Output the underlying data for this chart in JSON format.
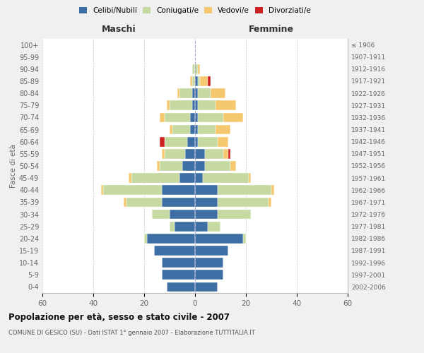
{
  "age_groups": [
    "100+",
    "95-99",
    "90-94",
    "85-89",
    "80-84",
    "75-79",
    "70-74",
    "65-69",
    "60-64",
    "55-59",
    "50-54",
    "45-49",
    "40-44",
    "35-39",
    "30-34",
    "25-29",
    "20-24",
    "15-19",
    "10-14",
    "5-9",
    "0-4"
  ],
  "birth_years": [
    "≤ 1906",
    "1907-1911",
    "1912-1916",
    "1917-1921",
    "1922-1926",
    "1927-1931",
    "1932-1936",
    "1937-1941",
    "1942-1946",
    "1947-1951",
    "1952-1956",
    "1957-1961",
    "1962-1966",
    "1967-1971",
    "1972-1976",
    "1977-1981",
    "1982-1986",
    "1987-1991",
    "1992-1996",
    "1997-2001",
    "2002-2006"
  ],
  "maschi": {
    "celibi": [
      0,
      0,
      0,
      0,
      1,
      1,
      2,
      2,
      3,
      4,
      5,
      6,
      13,
      13,
      10,
      8,
      19,
      16,
      13,
      13,
      11
    ],
    "coniugati": [
      0,
      0,
      1,
      1,
      5,
      9,
      10,
      7,
      9,
      8,
      9,
      19,
      23,
      14,
      7,
      2,
      1,
      0,
      0,
      0,
      0
    ],
    "vedovi": [
      0,
      0,
      0,
      1,
      1,
      1,
      2,
      1,
      0,
      1,
      1,
      1,
      1,
      1,
      0,
      0,
      0,
      0,
      0,
      0,
      0
    ],
    "divorziati": [
      0,
      0,
      0,
      0,
      0,
      0,
      0,
      0,
      2,
      0,
      0,
      0,
      0,
      0,
      0,
      0,
      0,
      0,
      0,
      0,
      0
    ]
  },
  "femmine": {
    "nubili": [
      0,
      0,
      0,
      1,
      1,
      1,
      1,
      1,
      1,
      4,
      4,
      3,
      9,
      9,
      9,
      5,
      19,
      13,
      11,
      11,
      9
    ],
    "coniugate": [
      0,
      0,
      1,
      1,
      5,
      7,
      10,
      7,
      8,
      7,
      10,
      18,
      21,
      20,
      13,
      5,
      1,
      0,
      0,
      0,
      0
    ],
    "vedove": [
      0,
      0,
      1,
      3,
      6,
      8,
      8,
      6,
      4,
      2,
      2,
      1,
      1,
      1,
      0,
      0,
      0,
      0,
      0,
      0,
      0
    ],
    "divorziate": [
      0,
      0,
      0,
      1,
      0,
      0,
      0,
      0,
      0,
      1,
      0,
      0,
      0,
      0,
      0,
      0,
      0,
      0,
      0,
      0,
      0
    ]
  },
  "colors": {
    "celibi": "#3d6fa5",
    "coniugati": "#c5d9a0",
    "vedovi": "#f5c870",
    "divorziati": "#cc2222"
  },
  "xlim": 60,
  "title": "Popolazione per età, sesso e stato civile - 2007",
  "subtitle": "COMUNE DI GESICO (SU) - Dati ISTAT 1° gennaio 2007 - Elaborazione TUTTITALIA.IT",
  "ylabel_left": "Fasce di età",
  "xlabel_maschi": "Maschi",
  "xlabel_femmine": "Femmine",
  "bg_color": "#f0f0f0",
  "plot_bg_color": "#ffffff",
  "legend_labels": [
    "Celibi/Nubili",
    "Coniugati/e",
    "Vedovi/e",
    "Divorziati/e"
  ]
}
